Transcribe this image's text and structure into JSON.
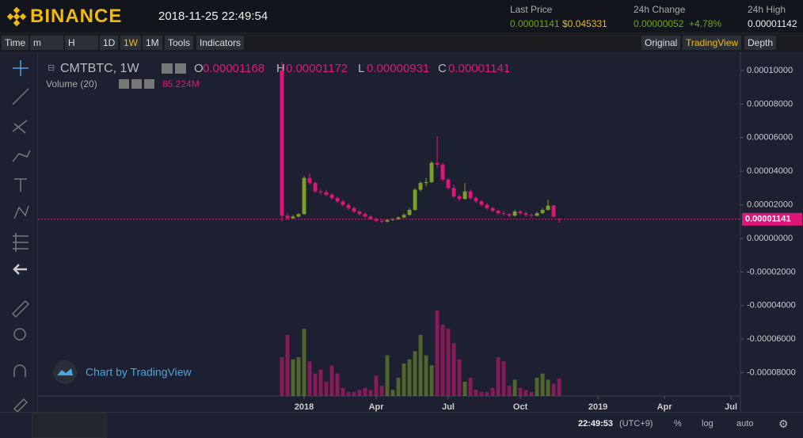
{
  "header": {
    "logo": "BINANCE",
    "datetime": "2018-11-25 22:49:54",
    "last_price_label": "Last Price",
    "last_price": "0.00001141",
    "last_price_usd": "$0.045331",
    "change_label": "24h Change",
    "change": "0.00000052",
    "change_pct": "+4.78%",
    "high_label": "24h High",
    "high": "0.00001142"
  },
  "toolbar": {
    "left": [
      "Time",
      "m",
      "H",
      "1D",
      "1W",
      "1M",
      "Tools",
      "Indicators"
    ],
    "right": [
      "Original",
      "TradingView",
      "Depth"
    ]
  },
  "legend": {
    "symbol": "CMTBTC, 1W",
    "o": "O",
    "h": "H",
    "l": "L",
    "c": "C",
    "volume": "Volume (20)"
  },
  "branding": "Chart by TradingView",
  "footer": {
    "time": "22:49:53",
    "tz": "(UTC+9)",
    "pct": "%",
    "log": "log",
    "auto": "auto"
  },
  "chart_data": {
    "type": "candlestick",
    "open": [
      0.0001,
      1.35e-05,
      1.2e-05,
      1.3e-05,
      1.45e-05,
      3.6e-05,
      3.3e-05,
      2.8e-05,
      2.75e-05,
      2.6e-05,
      2.4e-05,
      2.2e-05,
      2e-05,
      1.8e-05,
      1.6e-05,
      1.45e-05,
      1.3e-05,
      1.15e-05,
      1.05e-05,
      1e-05,
      1.1e-05,
      1.15e-05,
      1.25e-05,
      1.4e-05,
      1.7e-05,
      2.9e-05,
      3.3e-05,
      3.35e-05,
      4.5e-05,
      4.4e-05,
      3.5e-05,
      3e-05,
      2.5e-05,
      2.35e-05,
      2.8e-05,
      2.4e-05,
      2.2e-05,
      2e-05,
      1.8e-05,
      1.65e-05,
      1.5e-05,
      1.45e-05,
      1.35e-05,
      1.6e-05,
      1.5e-05,
      1.4e-05,
      1.35e-05,
      1.5e-05,
      1.7e-05,
      1.95e-05,
      1.168e-05
    ],
    "high": [
      0.000105,
      1.5e-05,
      1.4e-05,
      1.5e-05,
      3.7e-05,
      3.9e-05,
      3.4e-05,
      2.9e-05,
      2.9e-05,
      2.7e-05,
      2.5e-05,
      2.3e-05,
      2.1e-05,
      1.9e-05,
      1.7e-05,
      1.55e-05,
      1.4e-05,
      1.25e-05,
      1.15e-05,
      1.15e-05,
      1.2e-05,
      1.3e-05,
      1.5e-05,
      1.8e-05,
      3e-05,
      3.4e-05,
      3.6e-05,
      4.6e-05,
      6.1e-05,
      4.5e-05,
      3.6e-05,
      3.2e-05,
      2.6e-05,
      3.3e-05,
      2.9e-05,
      2.5e-05,
      2.3e-05,
      2.1e-05,
      1.9e-05,
      1.7e-05,
      1.65e-05,
      1.5e-05,
      1.7e-05,
      1.7e-05,
      1.6e-05,
      1.5e-05,
      1.6e-05,
      1.8e-05,
      2.3e-05,
      2e-05,
      1.172e-05
    ],
    "low": [
      1e-05,
      1.1e-05,
      1.15e-05,
      1.25e-05,
      1.4e-05,
      3.2e-05,
      2.7e-05,
      2.6e-05,
      2.5e-05,
      2.3e-05,
      2.1e-05,
      1.9e-05,
      1.7e-05,
      1.5e-05,
      1.35e-05,
      1.2e-05,
      1.1e-05,
      9.5e-06,
      9e-06,
      9.5e-06,
      1.05e-05,
      1.1e-05,
      1.2e-05,
      1.35e-05,
      1.65e-05,
      2.8e-05,
      3.1e-05,
      3.3e-05,
      4.2e-05,
      3.4e-05,
      2.9e-05,
      2.4e-05,
      2.2e-05,
      2.3e-05,
      2.3e-05,
      2.1e-05,
      1.9e-05,
      1.7e-05,
      1.55e-05,
      1.4e-05,
      1.35e-05,
      1.25e-05,
      1.3e-05,
      1.4e-05,
      1.3e-05,
      1.25e-05,
      1.3e-05,
      1.45e-05,
      1.65e-05,
      1.25e-05,
      9.31e-06
    ],
    "close": [
      1.35e-05,
      1.2e-05,
      1.3e-05,
      1.45e-05,
      3.6e-05,
      3.3e-05,
      2.8e-05,
      2.75e-05,
      2.6e-05,
      2.4e-05,
      2.2e-05,
      2e-05,
      1.8e-05,
      1.6e-05,
      1.45e-05,
      1.3e-05,
      1.15e-05,
      1.05e-05,
      1e-05,
      1.1e-05,
      1.15e-05,
      1.25e-05,
      1.4e-05,
      1.7e-05,
      2.9e-05,
      3.3e-05,
      3.35e-05,
      4.5e-05,
      4.4e-05,
      3.5e-05,
      3e-05,
      2.5e-05,
      2.35e-05,
      2.8e-05,
      2.4e-05,
      2.2e-05,
      2e-05,
      1.8e-05,
      1.65e-05,
      1.5e-05,
      1.45e-05,
      1.35e-05,
      1.6e-05,
      1.5e-05,
      1.4e-05,
      1.35e-05,
      1.5e-05,
      1.7e-05,
      1.95e-05,
      1.3e-05,
      1.141e-05
    ],
    "volume": [
      190,
      300,
      180,
      190,
      330,
      170,
      110,
      130,
      70,
      150,
      110,
      40,
      20,
      20,
      30,
      40,
      30,
      100,
      50,
      200,
      30,
      90,
      160,
      180,
      220,
      300,
      200,
      150,
      420,
      350,
      330,
      260,
      180,
      70,
      90,
      30,
      20,
      20,
      40,
      190,
      170,
      50,
      80,
      40,
      30,
      20,
      90,
      110,
      80,
      60,
      85.224
    ],
    "volume_label": "85.224M",
    "volume_lim": [
      0,
      1640
    ],
    "up_color": "#7ba02a",
    "down_color": "#e0157a",
    "ylim": [
      -9.39e-05,
      0.0001052
    ],
    "yticks": [
      {
        "value": 0.0001,
        "label": "0.00010000"
      },
      {
        "value": 8e-05,
        "label": "0.00008000"
      },
      {
        "value": 6e-05,
        "label": "0.00006000"
      },
      {
        "value": 4e-05,
        "label": "0.00004000"
      },
      {
        "value": 2e-05,
        "label": "0.00002000"
      },
      {
        "value": 0,
        "label": "0.00000000"
      },
      {
        "value": -2e-05,
        "label": "-0.00002000"
      },
      {
        "value": -4e-05,
        "label": "-0.00004000"
      },
      {
        "value": -6e-05,
        "label": "-0.00006000"
      },
      {
        "value": -8e-05,
        "label": "-0.00008000"
      }
    ],
    "xlim": [
      -44,
      82.7
    ],
    "xticks": [
      {
        "value": 4,
        "label": "2018"
      },
      {
        "value": 17,
        "label": "Apr"
      },
      {
        "value": 30,
        "label": "Jul"
      },
      {
        "value": 43,
        "label": "Oct"
      },
      {
        "value": 57,
        "label": "2019"
      },
      {
        "value": 69,
        "label": "Apr"
      },
      {
        "value": 81,
        "label": "Jul"
      }
    ]
  }
}
